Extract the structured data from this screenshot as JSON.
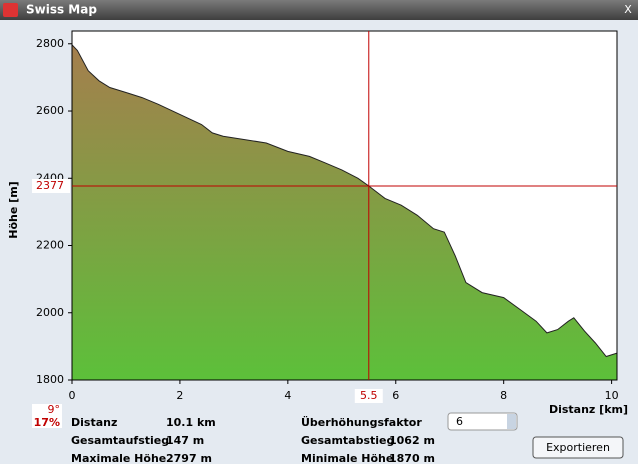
{
  "window": {
    "title": "Swiss Map",
    "close": "X"
  },
  "chart_data": {
    "type": "area",
    "xlabel": "Distanz [km]",
    "ylabel": "Höhe [m]",
    "x": [
      0,
      0.1,
      0.3,
      0.5,
      0.7,
      1.0,
      1.3,
      1.6,
      2.0,
      2.4,
      2.6,
      2.8,
      3.2,
      3.6,
      4.0,
      4.4,
      4.7,
      5.0,
      5.3,
      5.5,
      5.8,
      6.1,
      6.4,
      6.7,
      6.9,
      7.1,
      7.3,
      7.6,
      8.0,
      8.3,
      8.6,
      8.8,
      9.0,
      9.2,
      9.3,
      9.5,
      9.7,
      9.9,
      10.1
    ],
    "values": [
      2797,
      2780,
      2720,
      2690,
      2670,
      2655,
      2640,
      2620,
      2590,
      2560,
      2535,
      2525,
      2515,
      2505,
      2480,
      2465,
      2445,
      2425,
      2400,
      2377,
      2340,
      2320,
      2290,
      2250,
      2240,
      2170,
      2090,
      2060,
      2045,
      2010,
      1975,
      1940,
      1950,
      1975,
      1985,
      1945,
      1910,
      1870,
      1880
    ],
    "xlim": [
      0,
      10.1
    ],
    "xticks": [
      0,
      2,
      4,
      6,
      8,
      10
    ],
    "ylim": [
      1800,
      2838
    ],
    "yticks": [
      1800,
      2000,
      2200,
      2400,
      2600,
      2800
    ],
    "crosshair": {
      "x": 5.5,
      "y": 2377,
      "color": "#c00000"
    },
    "gradient": [
      "#a87b4e",
      "#5cc03a"
    ]
  },
  "info": {
    "slope_deg": "9°",
    "slope_pct": "17%",
    "rows": [
      [
        "Distanz",
        "10.1 km"
      ],
      [
        "Gesamtaufstieg",
        "147 m"
      ],
      [
        "Maximale Höhe",
        "2797 m"
      ]
    ],
    "rows2": [
      [
        "Überhöhungsfaktor",
        ""
      ],
      [
        "Gesamtabstieg",
        "1062 m"
      ],
      [
        "Minimale Höhe",
        "1870 m"
      ]
    ],
    "factor": "6",
    "button": "Exportieren"
  }
}
